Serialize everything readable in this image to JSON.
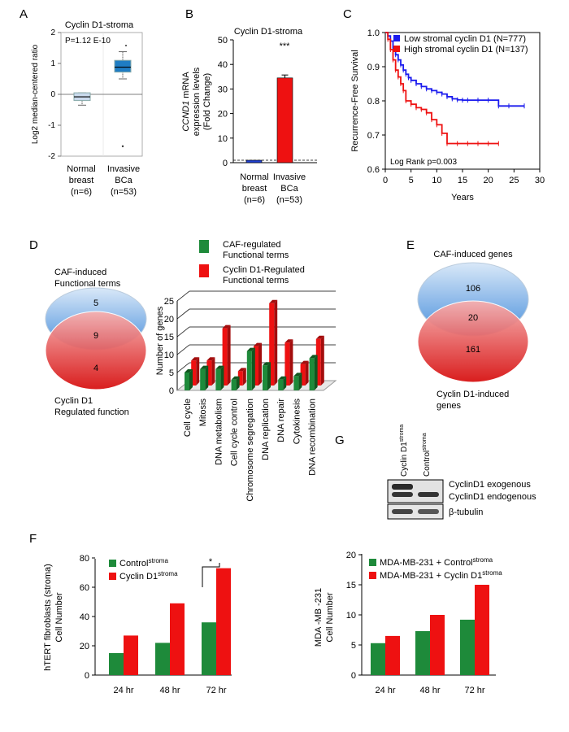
{
  "panels": {
    "a": "A",
    "b": "B",
    "c": "C",
    "d": "D",
    "e": "E",
    "f": "F",
    "g": "G"
  },
  "chart_data": [
    {
      "id": "A",
      "type": "box",
      "title": "Cyclin D1-stroma",
      "ylabel": "Log2 median-centered ratio",
      "ylim": [
        -2,
        2
      ],
      "yticks": [
        "2",
        "1",
        "0",
        "-1",
        "-2"
      ],
      "pvalue": "P=1.12 E-10",
      "groups": [
        {
          "label1": "Normal",
          "label2": "breast",
          "label3": "(n=6)",
          "min": -0.35,
          "q1": -0.2,
          "median": -0.08,
          "q3": 0.05,
          "max": 0.05,
          "outlier": null,
          "color": "#c9d9ec"
        },
        {
          "label1": "Invasive",
          "label2": "BCa",
          "label3": "(n=53)",
          "min": 0.5,
          "q1": 0.72,
          "median": 0.88,
          "q3": 1.1,
          "max": 1.38,
          "outlier": -1.68,
          "outlier2": 1.58,
          "color": "#1f7dc4"
        }
      ]
    },
    {
      "id": "B",
      "type": "bar",
      "title": "Cyclin D1-stroma",
      "ylabel_gene": "CCND1",
      "ylabel1": " mRNA",
      "ylabel2": "expression levels",
      "ylabel3": "(Fold Change)",
      "ylim": [
        0,
        50
      ],
      "yticks": [
        "50",
        "40",
        "30",
        "20",
        "10",
        "0"
      ],
      "significance": "***",
      "categories": [
        {
          "label1": "Normal",
          "label2": "breast",
          "label3": "(n=6)"
        },
        {
          "label1": "Invasive",
          "label2": "BCa",
          "label3": "(n=53)"
        }
      ],
      "values": [
        1,
        34.5
      ],
      "error": [
        0,
        1.2
      ],
      "colors": [
        "#1f3fd1",
        "#ee1111"
      ]
    },
    {
      "id": "C",
      "type": "line",
      "ylabel": "Recurrence-Free Survival",
      "xlabel": "Years",
      "xlim": [
        0,
        30
      ],
      "ylim": [
        0.6,
        1.0
      ],
      "xticks": [
        "0",
        "5",
        "10",
        "15",
        "20",
        "25",
        "30"
      ],
      "yticks": [
        "1.0",
        "0.9",
        "0.8",
        "0.7",
        "0.6"
      ],
      "annotation": "Log Rank p=0.003",
      "series": [
        {
          "name": "Low stromal cyclin D1 (N=777)",
          "color": "#1a1aee",
          "x": [
            0,
            0.5,
            1,
            1.5,
            2,
            2.5,
            3,
            3.5,
            4,
            4.5,
            5,
            6,
            7,
            8,
            9,
            10,
            11,
            12,
            13,
            14,
            15,
            16,
            18,
            20,
            22,
            24,
            27
          ],
          "y": [
            1.0,
            0.99,
            0.975,
            0.955,
            0.935,
            0.92,
            0.905,
            0.89,
            0.878,
            0.868,
            0.86,
            0.85,
            0.842,
            0.835,
            0.83,
            0.825,
            0.82,
            0.812,
            0.806,
            0.803,
            0.802,
            0.802,
            0.802,
            0.802,
            0.785,
            0.785,
            0.785
          ]
        },
        {
          "name": "High stromal cyclin D1 (N=137)",
          "color": "#ee1111",
          "x": [
            0,
            0.5,
            1,
            1.5,
            2,
            2.5,
            3,
            3.5,
            4,
            5,
            6,
            7,
            8,
            9,
            10,
            11,
            12,
            14,
            16,
            18,
            20,
            22
          ],
          "y": [
            1.0,
            0.98,
            0.95,
            0.92,
            0.89,
            0.87,
            0.85,
            0.83,
            0.8,
            0.79,
            0.78,
            0.775,
            0.765,
            0.745,
            0.73,
            0.705,
            0.675,
            0.675,
            0.675,
            0.675,
            0.675,
            0.675
          ]
        }
      ]
    },
    {
      "id": "D-venn",
      "type": "venn",
      "top_label1": "CAF-induced",
      "top_label2": "Functional terms",
      "bottom_label1": "Cyclin D1",
      "bottom_label2": "Regulated function",
      "only_top": "5",
      "overlap": "9",
      "only_bottom": "4"
    },
    {
      "id": "D-bar",
      "type": "bar",
      "ylabel": "Number of genes",
      "ylim": [
        0,
        25
      ],
      "yticks": [
        "25",
        "20",
        "15",
        "10",
        "5",
        "0"
      ],
      "categories": [
        "Cell cycle",
        "Mitosis",
        "DNA metabolism",
        "Cell cycle control",
        "Chromosome segregation",
        "DNA replication",
        "DNA repair",
        "Cytokinesis",
        "DNA recombination"
      ],
      "series": [
        {
          "name": "CAF-regulated Functional terms",
          "name1": "CAF-regulated",
          "name2": " Functional terms",
          "color": "#1e8a3a",
          "values": [
            5,
            6,
            6,
            3,
            11,
            7,
            3,
            4,
            9
          ]
        },
        {
          "name": "Cyclin D1-Regulated Functional terms",
          "name1": "Cyclin D1-Regulated",
          "name2": "Functional terms",
          "color": "#ee1111",
          "values": [
            7,
            7,
            16,
            4,
            11,
            23,
            12,
            6,
            13
          ]
        }
      ]
    },
    {
      "id": "E",
      "type": "venn",
      "top_label": "CAF-induced genes",
      "bottom_label1": "Cyclin D1-induced",
      "bottom_label2": "genes",
      "only_top": "106",
      "overlap": "20",
      "only_bottom": "161"
    },
    {
      "id": "G",
      "type": "blot",
      "lane1": "Cyclin D1",
      "lane1_sup": "stroma",
      "lane2": "Control",
      "lane2_sup": "stroma",
      "row1a": "CyclinD1 exogenous",
      "row1b": "CyclinD1 endogenous",
      "row2": "β-tubulin"
    },
    {
      "id": "F1",
      "type": "bar",
      "ylabel1": "hTERT fibroblasts (stroma)",
      "ylabel2": "Cell Number",
      "ylim": [
        0,
        80
      ],
      "yticks": [
        "80",
        "60",
        "40",
        "20",
        "0"
      ],
      "categories": [
        "24 hr",
        "48 hr",
        "72 hr"
      ],
      "significance": "*",
      "series": [
        {
          "name": "Control",
          "sup": "stroma",
          "color": "#1e8a3a",
          "values": [
            15,
            22,
            36
          ]
        },
        {
          "name": "Cyclin D1",
          "sup": "stroma",
          "color": "#ee1111",
          "values": [
            27,
            49,
            73
          ]
        }
      ]
    },
    {
      "id": "F2",
      "type": "bar",
      "ylabel1": "MDA -MB -231",
      "ylabel2": "Cell Number",
      "ylim": [
        0,
        20
      ],
      "yticks": [
        "20",
        "15",
        "10",
        "5",
        "0"
      ],
      "categories": [
        "24 hr",
        "48 hr",
        "72 hr"
      ],
      "series": [
        {
          "name": "MDA-MB-231 + Control",
          "sup": "stroma",
          "color": "#1e8a3a",
          "values": [
            5.3,
            7.3,
            9.2
          ]
        },
        {
          "name": "MDA-MB-231 + Cyclin D1",
          "sup": "stroma",
          "color": "#ee1111",
          "values": [
            6.5,
            10,
            15
          ]
        }
      ]
    }
  ]
}
